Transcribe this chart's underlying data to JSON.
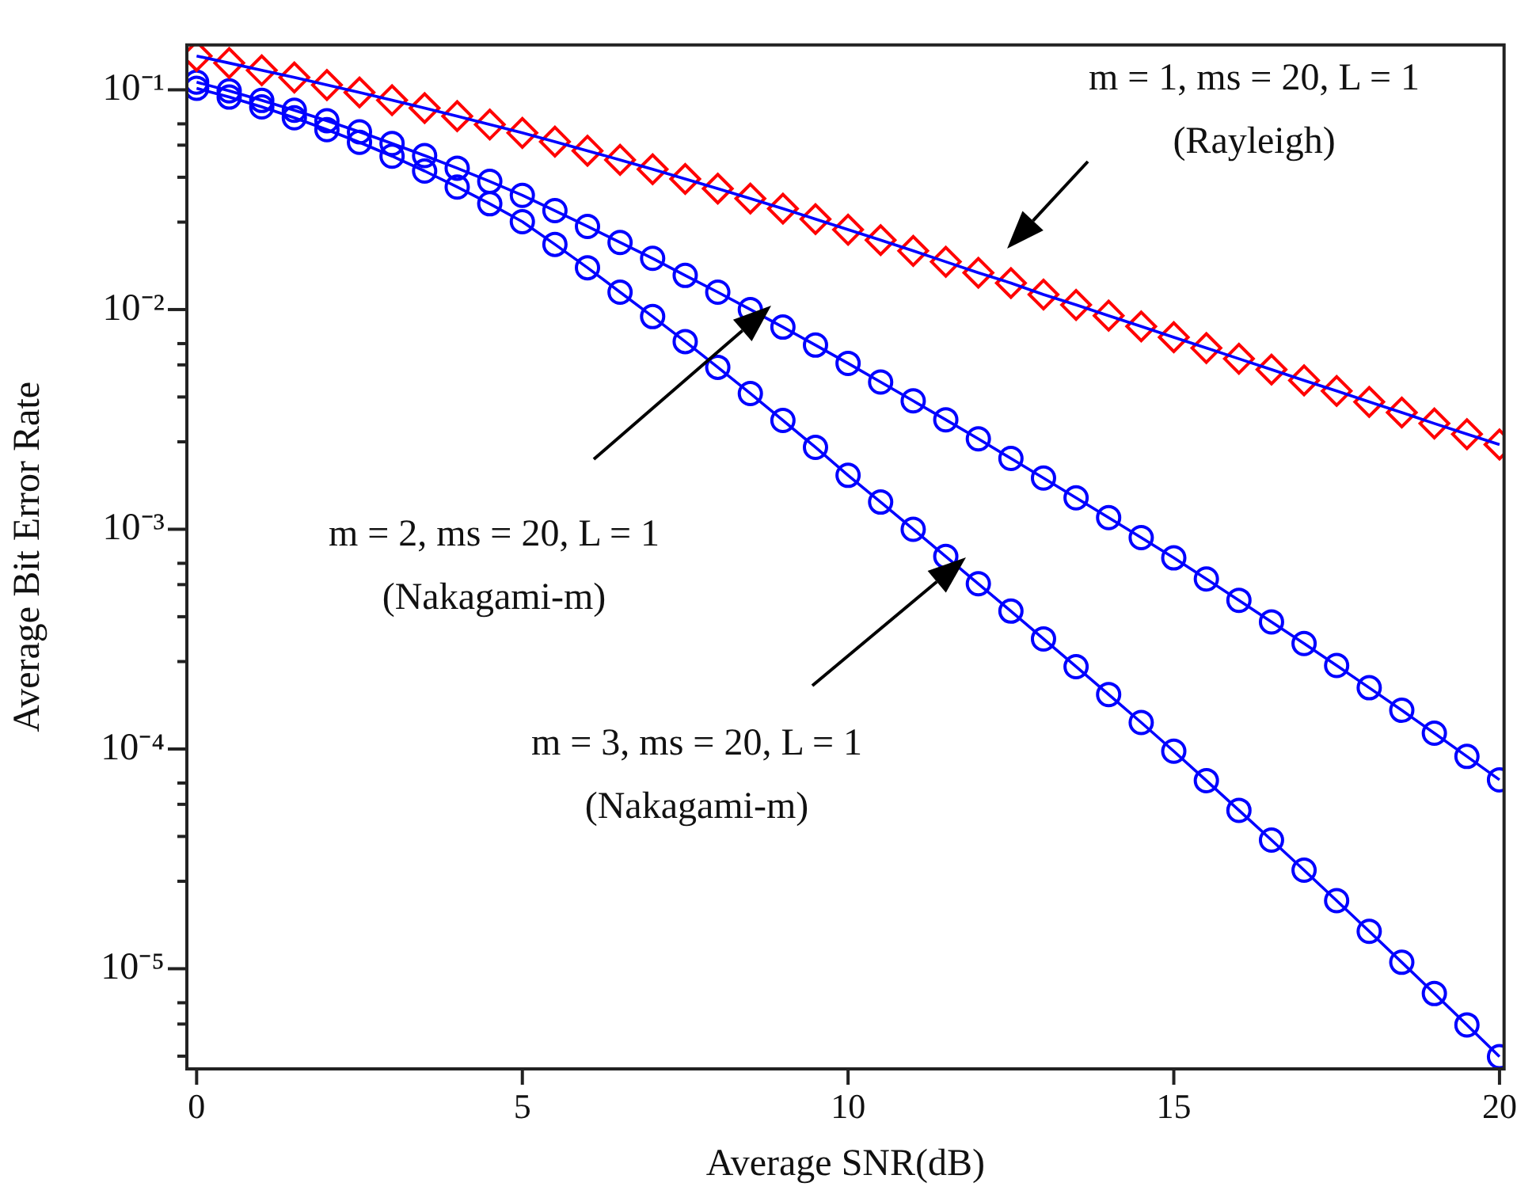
{
  "chart_data": {
    "type": "line",
    "xlabel": "Average SNR(dB)",
    "ylabel": "Average Bit Error Rate",
    "log": "y",
    "legend": false,
    "grid": false,
    "x": [
      0,
      0.5,
      1,
      1.5,
      2,
      2.5,
      3,
      3.5,
      4,
      4.5,
      5,
      5.5,
      6,
      6.5,
      7,
      7.5,
      8,
      8.5,
      9,
      9.5,
      10,
      10.5,
      11,
      11.5,
      12,
      12.5,
      13,
      13.5,
      14,
      14.5,
      15,
      15.5,
      16,
      16.5,
      17,
      17.5,
      18,
      18.5,
      19,
      19.5,
      20
    ],
    "xlim": [
      -0.15,
      20.07
    ],
    "xticks": [
      0,
      5,
      10,
      15,
      20
    ],
    "ylim": [
      3.5e-06,
      0.16
    ],
    "yticks": [
      {
        "value": 0.1,
        "label": "10⁻¹"
      },
      {
        "value": 0.07,
        "label": null
      },
      {
        "value": 0.056,
        "label": null
      },
      {
        "value": 0.04,
        "label": null
      },
      {
        "value": 0.025,
        "label": null
      },
      {
        "value": 0.01,
        "label": "10⁻²"
      },
      {
        "value": 0.007,
        "label": null
      },
      {
        "value": 0.0056,
        "label": null
      },
      {
        "value": 0.004,
        "label": null
      },
      {
        "value": 0.0025,
        "label": null
      },
      {
        "value": 0.001,
        "label": "10⁻³"
      },
      {
        "value": 0.0007,
        "label": null
      },
      {
        "value": 0.00056,
        "label": null
      },
      {
        "value": 0.0004,
        "label": null
      },
      {
        "value": 0.00025,
        "label": null
      },
      {
        "value": 0.0001,
        "label": "10⁻⁴"
      },
      {
        "value": 7e-05,
        "label": null
      },
      {
        "value": 5.6e-05,
        "label": null
      },
      {
        "value": 4e-05,
        "label": null
      },
      {
        "value": 2.5e-05,
        "label": null
      },
      {
        "value": 1e-05,
        "label": "10⁻⁵"
      },
      {
        "value": 7e-06,
        "label": null
      },
      {
        "value": 5.6e-06,
        "label": null
      },
      {
        "value": 4e-06,
        "label": null
      }
    ],
    "series": [
      {
        "marker": "none",
        "color": "#0000ff",
        "values": [
          0.1426,
          0.1324,
          0.1227,
          0.1138,
          0.1052,
          0.0973,
          0.0897,
          0.0826,
          0.0759,
          0.0695,
          0.0637,
          0.0581,
          0.0528,
          0.048,
          0.0435,
          0.0393,
          0.0355,
          0.032,
          0.0288,
          0.0258,
          0.0231,
          0.0207,
          0.0185,
          0.0165,
          0.0147,
          0.0132,
          0.0117,
          0.0105,
          0.00938,
          0.00838,
          0.00748,
          0.00668,
          0.00597,
          0.00533,
          0.00476,
          0.00426,
          0.0038,
          0.0034,
          0.00303,
          0.00271,
          0.00243
        ]
      },
      {
        "type": "scatter",
        "marker": "diamond",
        "color": "#ff0000",
        "values": [
          0.1426,
          0.1324,
          0.1227,
          0.1138,
          0.1052,
          0.0973,
          0.0897,
          0.0826,
          0.0759,
          0.0695,
          0.0637,
          0.0581,
          0.0528,
          0.048,
          0.0435,
          0.0393,
          0.0355,
          0.032,
          0.0288,
          0.0258,
          0.0231,
          0.0207,
          0.0185,
          0.0165,
          0.0147,
          0.0132,
          0.0117,
          0.0105,
          0.00938,
          0.00838,
          0.00748,
          0.00668,
          0.00597,
          0.00533,
          0.00476,
          0.00426,
          0.0038,
          0.0034,
          0.00303,
          0.00271,
          0.00243
        ]
      },
      {
        "marker": "none",
        "color": "#0000ff",
        "values": [
          0.1084,
          0.0989,
          0.0895,
          0.0807,
          0.0723,
          0.0644,
          0.057,
          0.0502,
          0.044,
          0.0383,
          0.0331,
          0.0282,
          0.0239,
          0.0202,
          0.0171,
          0.0143,
          0.012,
          0.01,
          0.00832,
          0.00689,
          0.00569,
          0.00468,
          0.00384,
          0.00315,
          0.00258,
          0.0021,
          0.00171,
          0.00139,
          0.00113,
          0.000916,
          0.000741,
          0.000594,
          0.000475,
          0.000379,
          0.000302,
          0.00024,
          0.00019,
          0.00015,
          0.000118,
          9.25e-05,
          7.24e-05
        ]
      },
      {
        "type": "scatter",
        "marker": "circle",
        "color": "#0000ff",
        "values": [
          0.1084,
          0.0989,
          0.0895,
          0.0807,
          0.0723,
          0.0644,
          0.057,
          0.0502,
          0.044,
          0.0383,
          0.0331,
          0.0282,
          0.0239,
          0.0202,
          0.0171,
          0.0143,
          0.012,
          0.01,
          0.00832,
          0.00689,
          0.00569,
          0.00468,
          0.00384,
          0.00315,
          0.00258,
          0.0021,
          0.00171,
          0.00139,
          0.00113,
          0.000916,
          0.000741,
          0.000594,
          0.000475,
          0.000379,
          0.000302,
          0.00024,
          0.00019,
          0.00015,
          0.000118,
          9.25e-05,
          7.24e-05
        ]
      },
      {
        "marker": "none",
        "color": "#0000ff",
        "values": [
          0.1016,
          0.0927,
          0.0836,
          0.0746,
          0.0659,
          0.0577,
          0.0499,
          0.0427,
          0.0361,
          0.0303,
          0.0251,
          0.0198,
          0.0155,
          0.012,
          0.00929,
          0.00715,
          0.00546,
          0.00415,
          0.00313,
          0.00236,
          0.00176,
          0.00133,
          0.001,
          0.000752,
          0.000565,
          0.000424,
          0.000317,
          0.000237,
          0.000177,
          0.000132,
          9.77e-05,
          7.18e-05,
          5.26e-05,
          3.85e-05,
          2.81e-05,
          2.04e-05,
          1.48e-05,
          1.07e-05,
          7.71e-06,
          5.55e-06,
          3.98e-06
        ]
      },
      {
        "type": "scatter",
        "marker": "circle",
        "color": "#0000ff",
        "values": [
          0.1016,
          0.0927,
          0.0836,
          0.0746,
          0.0659,
          0.0577,
          0.0499,
          0.0427,
          0.0361,
          0.0303,
          0.0251,
          0.0198,
          0.0155,
          0.012,
          0.00929,
          0.00715,
          0.00546,
          0.00415,
          0.00313,
          0.00236,
          0.00176,
          0.00133,
          0.001,
          0.000752,
          0.000565,
          0.000424,
          0.000317,
          0.000237,
          0.000177,
          0.000132,
          9.77e-05,
          7.18e-05,
          5.26e-05,
          3.85e-05,
          2.81e-05,
          2.04e-05,
          1.48e-05,
          1.07e-05,
          7.71e-06,
          5.55e-06,
          3.98e-06
        ]
      }
    ],
    "annotations": [
      "m = 1, ms = 20, L = 1\n(Rayleigh)",
      "m = 2, ms = 20, L = 1\n(Nakagami-m)",
      "m = 3, ms = 20, L = 1\n(Nakagami-m)"
    ]
  }
}
